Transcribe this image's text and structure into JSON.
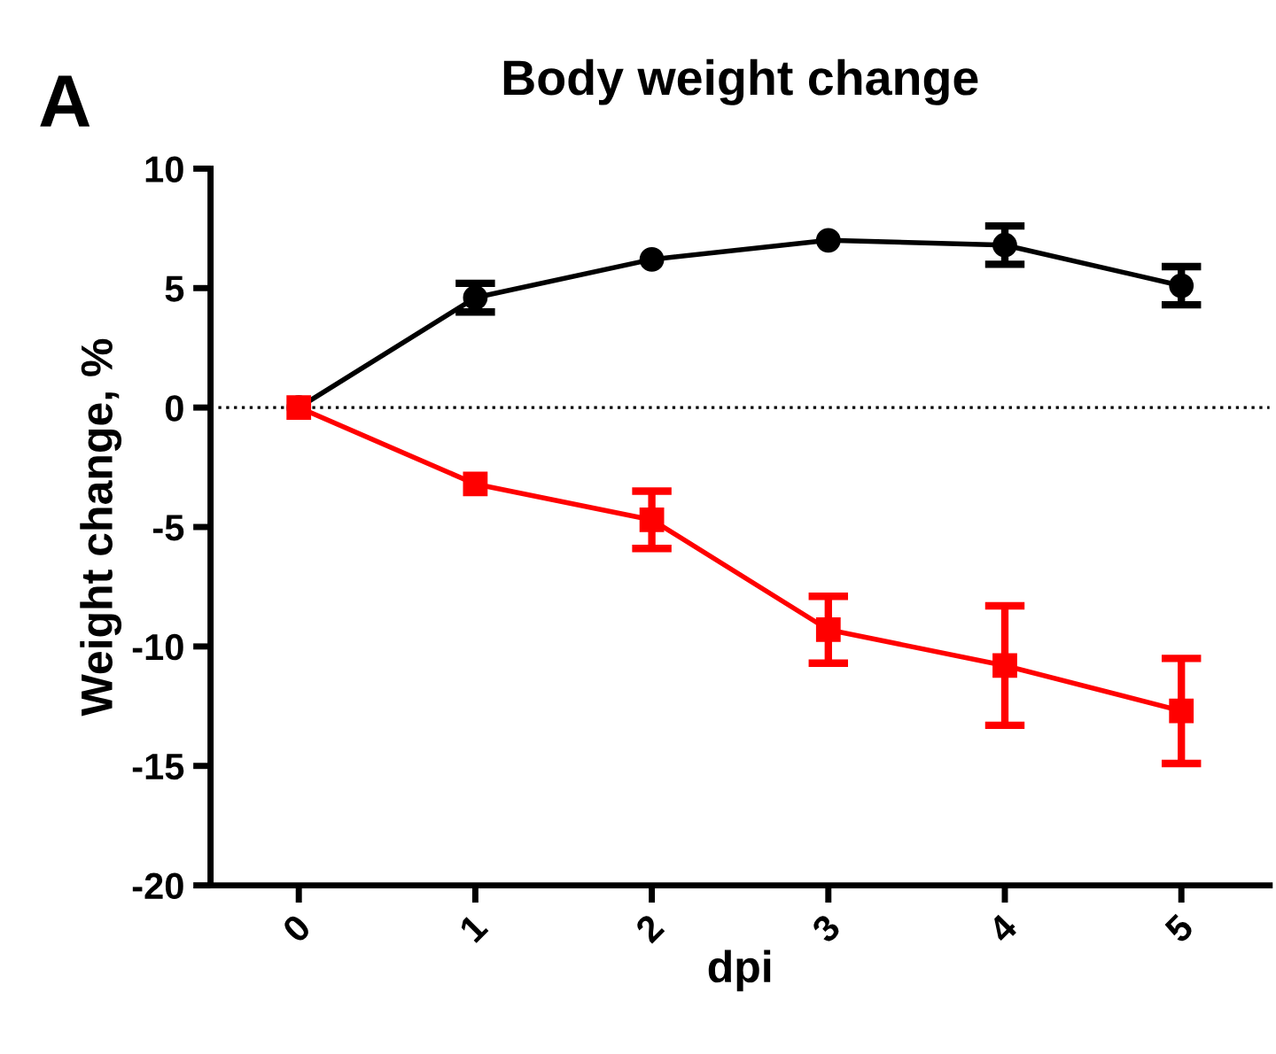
{
  "chart_data": {
    "type": "line",
    "title": "Body weight change",
    "xlabel": "dpi",
    "ylabel": "Weight change, %",
    "annotations": [
      "A"
    ],
    "categories": [
      "0",
      "1",
      "2",
      "3",
      "4",
      "5"
    ],
    "series": [
      {
        "color": "#000000",
        "marker": "circle",
        "values": [
          0,
          4.6,
          6.2,
          7.0,
          6.8,
          5.1
        ],
        "errors": [
          null,
          0.6,
          null,
          null,
          0.8,
          0.8
        ]
      },
      {
        "color": "#ff0000",
        "marker": "square",
        "values": [
          0,
          -3.2,
          -4.7,
          -9.3,
          -10.8,
          -12.7
        ],
        "errors": [
          null,
          null,
          1.2,
          1.4,
          2.5,
          2.2
        ]
      }
    ],
    "ylim": [
      -20,
      10
    ],
    "yticks": [
      -20,
      -15,
      -10,
      -5,
      0,
      5,
      10
    ],
    "ref_lines": [
      {
        "axis": "y",
        "value": 0,
        "line_style": "dotted",
        "color": "#000000"
      }
    ],
    "grid": false,
    "legend": false
  }
}
